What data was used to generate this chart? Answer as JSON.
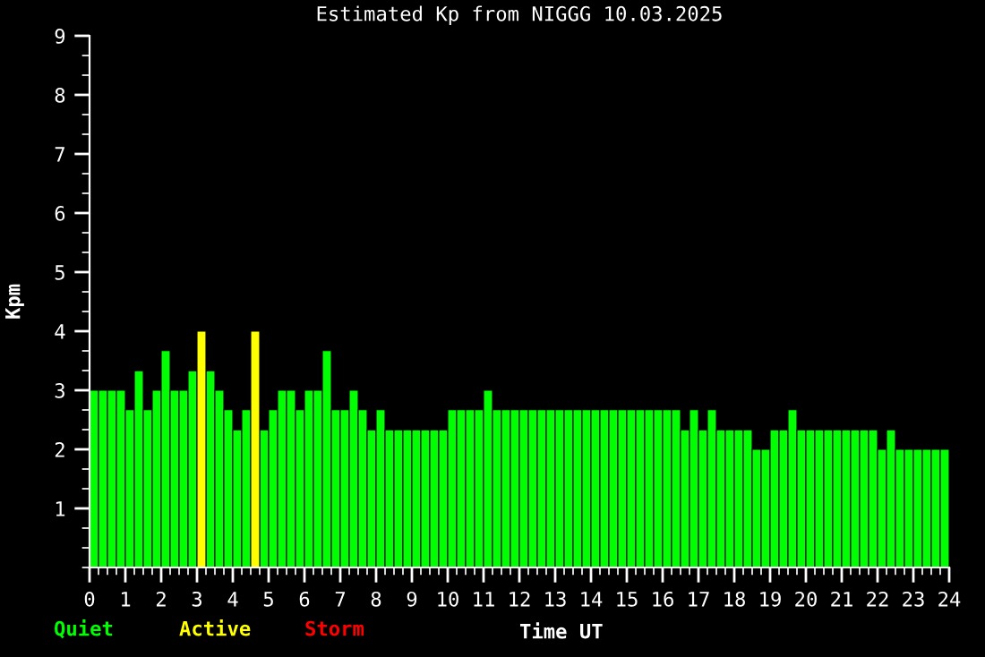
{
  "chart_data": {
    "type": "bar",
    "title": "Estimated Kp from NIGGG 10.03.2025",
    "xlabel": "Time UT",
    "ylabel": "Kpm",
    "x": [
      0,
      0.25,
      0.5,
      0.75,
      1,
      1.25,
      1.5,
      1.75,
      2,
      2.25,
      2.5,
      2.75,
      3,
      3.25,
      3.5,
      3.75,
      4,
      4.25,
      4.5,
      4.75,
      5,
      5.25,
      5.5,
      5.75,
      6,
      6.25,
      6.5,
      6.75,
      7,
      7.25,
      7.5,
      7.75,
      8,
      8.25,
      8.5,
      8.75,
      9,
      9.25,
      9.5,
      9.75,
      10,
      10.25,
      10.5,
      10.75,
      11,
      11.25,
      11.5,
      11.75,
      12,
      12.25,
      12.5,
      12.75,
      13,
      13.25,
      13.5,
      13.75,
      14,
      14.25,
      14.5,
      14.75,
      15,
      15.25,
      15.5,
      15.75,
      16,
      16.25,
      16.5,
      16.75,
      17,
      17.25,
      17.5,
      17.75,
      18,
      18.25,
      18.5,
      18.75,
      19,
      19.25,
      19.5,
      19.75,
      20,
      20.25,
      20.5,
      20.75,
      21,
      21.25,
      21.5,
      21.75,
      22,
      22.25,
      22.5,
      22.75,
      23,
      23.25,
      23.5,
      23.75
    ],
    "series": [
      {
        "name": "Quiet",
        "color": "#00ff00",
        "values": [
          3,
          3,
          3,
          3,
          2.67,
          3.33,
          2.67,
          3,
          3.67,
          3,
          3,
          3.33,
          null,
          3.33,
          3,
          2.67,
          2.33,
          2.67,
          null,
          2.33,
          2.67,
          3,
          3,
          2.67,
          3,
          3,
          3.67,
          2.67,
          2.67,
          3,
          2.67,
          2.33,
          2.67,
          2.33,
          2.33,
          2.33,
          2.33,
          2.33,
          2.33,
          2.33,
          2.67,
          2.67,
          2.67,
          2.67,
          3,
          2.67,
          2.67,
          2.67,
          2.67,
          2.67,
          2.67,
          2.67,
          2.67,
          2.67,
          2.67,
          2.67,
          2.67,
          2.67,
          2.67,
          2.67,
          2.67,
          2.67,
          2.67,
          2.67,
          2.67,
          2.67,
          2.33,
          2.67,
          2.33,
          2.67,
          2.33,
          2.33,
          2.33,
          2.33,
          2,
          2,
          2.33,
          2.33,
          2.67,
          2.33,
          2.33,
          2.33,
          2.33,
          2.33,
          2.33,
          2.33,
          2.33,
          2.33,
          2,
          2.33,
          2,
          2,
          2,
          2,
          2,
          2
        ]
      },
      {
        "name": "Active",
        "color": "#ffff00",
        "values": [
          null,
          null,
          null,
          null,
          null,
          null,
          null,
          null,
          null,
          null,
          null,
          null,
          4,
          null,
          null,
          null,
          null,
          null,
          4,
          null,
          null,
          null,
          null,
          null,
          null,
          null,
          null,
          null,
          null,
          null,
          null,
          null,
          null,
          null,
          null,
          null,
          null,
          null,
          null,
          null,
          null,
          null,
          null,
          null,
          null,
          null,
          null,
          null,
          null,
          null,
          null,
          null,
          null,
          null,
          null,
          null,
          null,
          null,
          null,
          null,
          null,
          null,
          null,
          null,
          null,
          null,
          null,
          null,
          null,
          null,
          null,
          null,
          null,
          null,
          null,
          null,
          null,
          null,
          null,
          null,
          null,
          null,
          null,
          null,
          null,
          null,
          null,
          null,
          null,
          null,
          null,
          null,
          null,
          null,
          null,
          null
        ]
      },
      {
        "name": "Storm",
        "color": "#ff0000",
        "values": [
          null,
          null,
          null,
          null,
          null,
          null,
          null,
          null,
          null,
          null,
          null,
          null,
          null,
          null,
          null,
          null,
          null,
          null,
          null,
          null,
          null,
          null,
          null,
          null,
          null,
          null,
          null,
          null,
          null,
          null,
          null,
          null,
          null,
          null,
          null,
          null,
          null,
          null,
          null,
          null,
          null,
          null,
          null,
          null,
          null,
          null,
          null,
          null,
          null,
          null,
          null,
          null,
          null,
          null,
          null,
          null,
          null,
          null,
          null,
          null,
          null,
          null,
          null,
          null,
          null,
          null,
          null,
          null,
          null,
          null,
          null,
          null,
          null,
          null,
          null,
          null,
          null,
          null,
          null,
          null,
          null,
          null,
          null,
          null,
          null,
          null,
          null,
          null,
          null,
          null,
          null,
          null,
          null,
          null,
          null,
          null
        ]
      }
    ],
    "xlim": [
      0,
      24
    ],
    "xticks": [
      0,
      1,
      2,
      3,
      4,
      5,
      6,
      7,
      8,
      9,
      10,
      11,
      12,
      13,
      14,
      15,
      16,
      17,
      18,
      19,
      20,
      21,
      22,
      23,
      24
    ],
    "ylim": [
      0,
      9
    ],
    "yticks": [
      1,
      2,
      3,
      4,
      5,
      6,
      7,
      8,
      9
    ],
    "grid": false
  }
}
